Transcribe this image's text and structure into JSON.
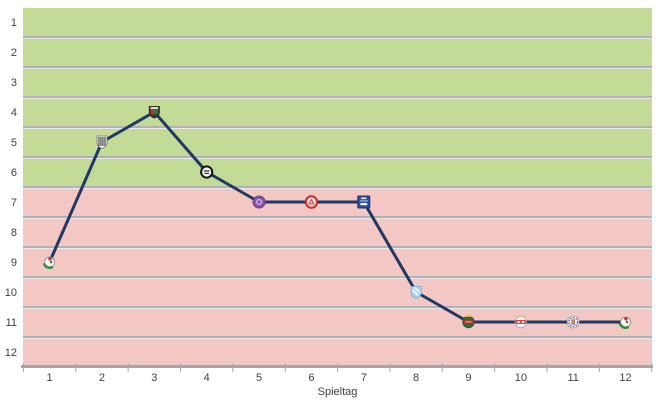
{
  "chart_data": {
    "type": "line",
    "xlabel": "Spieltag",
    "x_tick_labels": [
      "1",
      "2",
      "3",
      "4",
      "5",
      "6",
      "7",
      "8",
      "9",
      "10",
      "11",
      "12"
    ],
    "y_tick_labels": [
      "1",
      "2",
      "3",
      "4",
      "5",
      "6",
      "7",
      "8",
      "9",
      "10",
      "11",
      "12"
    ],
    "ylim": [
      1,
      12
    ],
    "y_inverted": true,
    "grid": true,
    "legend": "none",
    "line_color": "#203864",
    "axis_color": "#a6a6a6",
    "grid_color": "#b2b2b2",
    "grid_highlight_color": "#eaeaea",
    "text_color": "#3f3f3f",
    "zones": [
      {
        "name": "upper-zone",
        "from_position": 1,
        "to_position": 6,
        "color": "#c4db97"
      },
      {
        "name": "lower-zone",
        "from_position": 7,
        "to_position": 12,
        "color": "#f3c7c3"
      }
    ],
    "x": [
      1,
      2,
      3,
      4,
      5,
      6,
      7,
      8,
      9,
      10,
      11,
      12
    ],
    "values": [
      9,
      5,
      4,
      6,
      7,
      7,
      7,
      10,
      11,
      11,
      11,
      11
    ],
    "points": [
      {
        "matchday": 1,
        "position": 9,
        "icon": "club-badge-ball-laurel-icon",
        "colors": [
          "#ffffff",
          "#2c9140",
          "#c63333",
          "#8a8a8a"
        ]
      },
      {
        "matchday": 2,
        "position": 5,
        "icon": "club-badge-striped-shield-icon",
        "colors": [
          "#f8f8f8",
          "#3a3a3a",
          "#777777"
        ]
      },
      {
        "matchday": 3,
        "position": 4,
        "icon": "club-badge-red-green-crest-icon",
        "colors": [
          "#2f2f2f",
          "#c2342c",
          "#2b7a35",
          "#d8d8d8"
        ]
      },
      {
        "matchday": 4,
        "position": 6,
        "icon": "club-badge-black-white-circle-icon",
        "colors": [
          "#f4f4f4",
          "#141414"
        ]
      },
      {
        "matchday": 5,
        "position": 7,
        "icon": "club-badge-purple-circle-icon",
        "colors": [
          "#8a56aa",
          "#6a3a8a",
          "#e8c832",
          "#ead8f0"
        ]
      },
      {
        "matchday": 6,
        "position": 7,
        "icon": "club-badge-red-ring-triangle-icon",
        "colors": [
          "#d23c3c",
          "#f2dcdc",
          "#b02828"
        ]
      },
      {
        "matchday": 7,
        "position": 7,
        "icon": "club-badge-blue-square-icon",
        "colors": [
          "#2a4fa2",
          "#ffffff",
          "#16306e"
        ]
      },
      {
        "matchday": 8,
        "position": 10,
        "icon": "club-badge-lightblue-shield-icon",
        "colors": [
          "#aed4ee",
          "#ffffff",
          "#7fb2d8"
        ]
      },
      {
        "matchday": 9,
        "position": 11,
        "icon": "club-badge-green-crown-circle-icon",
        "colors": [
          "#2a6b3a",
          "#c03030",
          "#e8c832",
          "#444444"
        ]
      },
      {
        "matchday": 10,
        "position": 11,
        "icon": "club-badge-white-red-band-icon",
        "colors": [
          "#edeff3",
          "#d84848",
          "#e8c832",
          "#9aa0aa"
        ]
      },
      {
        "matchday": 11,
        "position": 11,
        "icon": "club-badge-purple-ring-gold-icon",
        "colors": [
          "#f6f6f6",
          "#7a5898",
          "#c89850",
          "#888888"
        ]
      },
      {
        "matchday": 12,
        "position": 11,
        "icon": "club-badge-ball-laurel-icon",
        "colors": [
          "#ffffff",
          "#2c9140",
          "#c63333",
          "#8a8a8a"
        ]
      }
    ]
  }
}
